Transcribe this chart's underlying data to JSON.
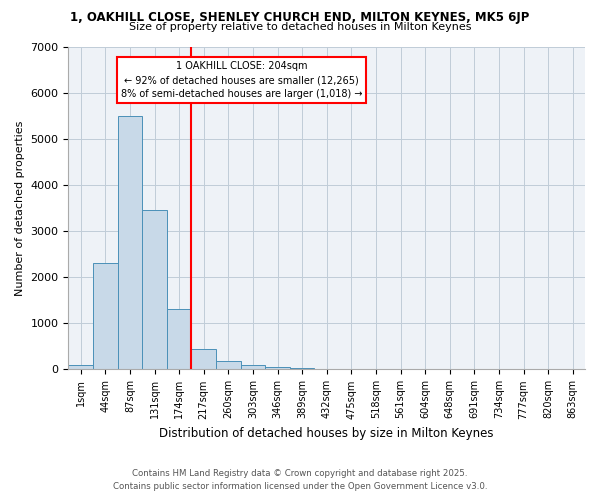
{
  "title1": "1, OAKHILL CLOSE, SHENLEY CHURCH END, MILTON KEYNES, MK5 6JP",
  "title2": "Size of property relative to detached houses in Milton Keynes",
  "xlabel": "Distribution of detached houses by size in Milton Keynes",
  "ylabel": "Number of detached properties",
  "bar_labels": [
    "1sqm",
    "44sqm",
    "87sqm",
    "131sqm",
    "174sqm",
    "217sqm",
    "260sqm",
    "303sqm",
    "346sqm",
    "389sqm",
    "432sqm",
    "475sqm",
    "518sqm",
    "561sqm",
    "604sqm",
    "648sqm",
    "691sqm",
    "734sqm",
    "777sqm",
    "820sqm",
    "863sqm"
  ],
  "bar_values": [
    100,
    2300,
    5500,
    3450,
    1300,
    450,
    175,
    100,
    50,
    30,
    10,
    5,
    2,
    1,
    1,
    0,
    0,
    0,
    0,
    0,
    0
  ],
  "bar_color": "#c8d9e8",
  "bar_edge_color": "#4a90b8",
  "vline_color": "red",
  "vline_pos": 4.5,
  "annotation_title": "1 OAKHILL CLOSE: 204sqm",
  "annotation_line2": "← 92% of detached houses are smaller (12,265)",
  "annotation_line3": "8% of semi-detached houses are larger (1,018) →",
  "annotation_box_color": "red",
  "ylim": [
    0,
    7000
  ],
  "yticks": [
    0,
    1000,
    2000,
    3000,
    4000,
    5000,
    6000,
    7000
  ],
  "footer1": "Contains HM Land Registry data © Crown copyright and database right 2025.",
  "footer2": "Contains public sector information licensed under the Open Government Licence v3.0.",
  "bg_color": "#eef2f7",
  "grid_color": "#c0ccd8"
}
